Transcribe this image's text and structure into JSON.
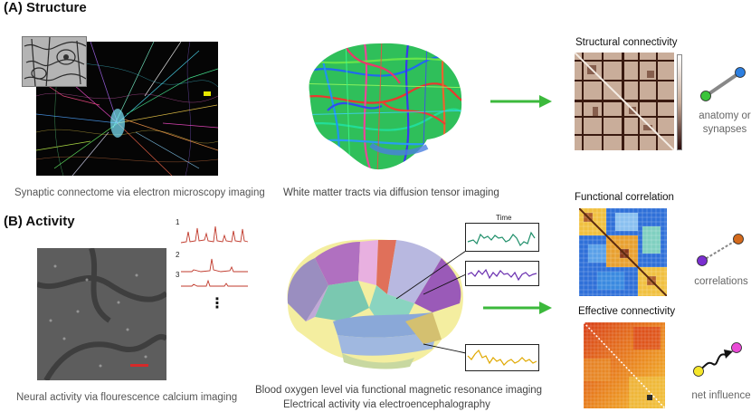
{
  "sections": {
    "structure": {
      "title": "(A) Structure"
    },
    "activity": {
      "title": "(B) Activity"
    }
  },
  "captions": {
    "connectome": "Synaptic connectome via electron microscopy imaging",
    "white_matter": "White matter tracts via diffusion tensor imaging",
    "calcium": "Neural activity via flourescence calcium imaging",
    "bold": "Blood oxygen level via functional magnetic resonance imaging",
    "eeg": "Electrical activity via electroencephalography"
  },
  "panels": {
    "structural": "Structural connectivity",
    "functional": "Functional correlation",
    "effective": "Effective connectivity"
  },
  "side_labels": {
    "anatomy_line1": "anatomy or",
    "anatomy_line2": "synapses",
    "correlations": "correlations",
    "influence": "net influence"
  },
  "traces": {
    "numbers": [
      "1",
      "2",
      "3"
    ],
    "ellipsis": "⋮",
    "time_label": "Time"
  },
  "colors": {
    "arrow": "#3cb93c",
    "node_green": "#3cc43c",
    "node_blue": "#2d7fe0",
    "node_purple": "#7a2fd0",
    "node_orange": "#d46a1c",
    "node_yellow": "#f5e62a",
    "node_pink": "#e94ad6",
    "trace_red": "#c0392b",
    "trace_green": "#1f8f6a",
    "trace_purple": "#6a2fb0",
    "trace_yellow": "#e0a800"
  }
}
